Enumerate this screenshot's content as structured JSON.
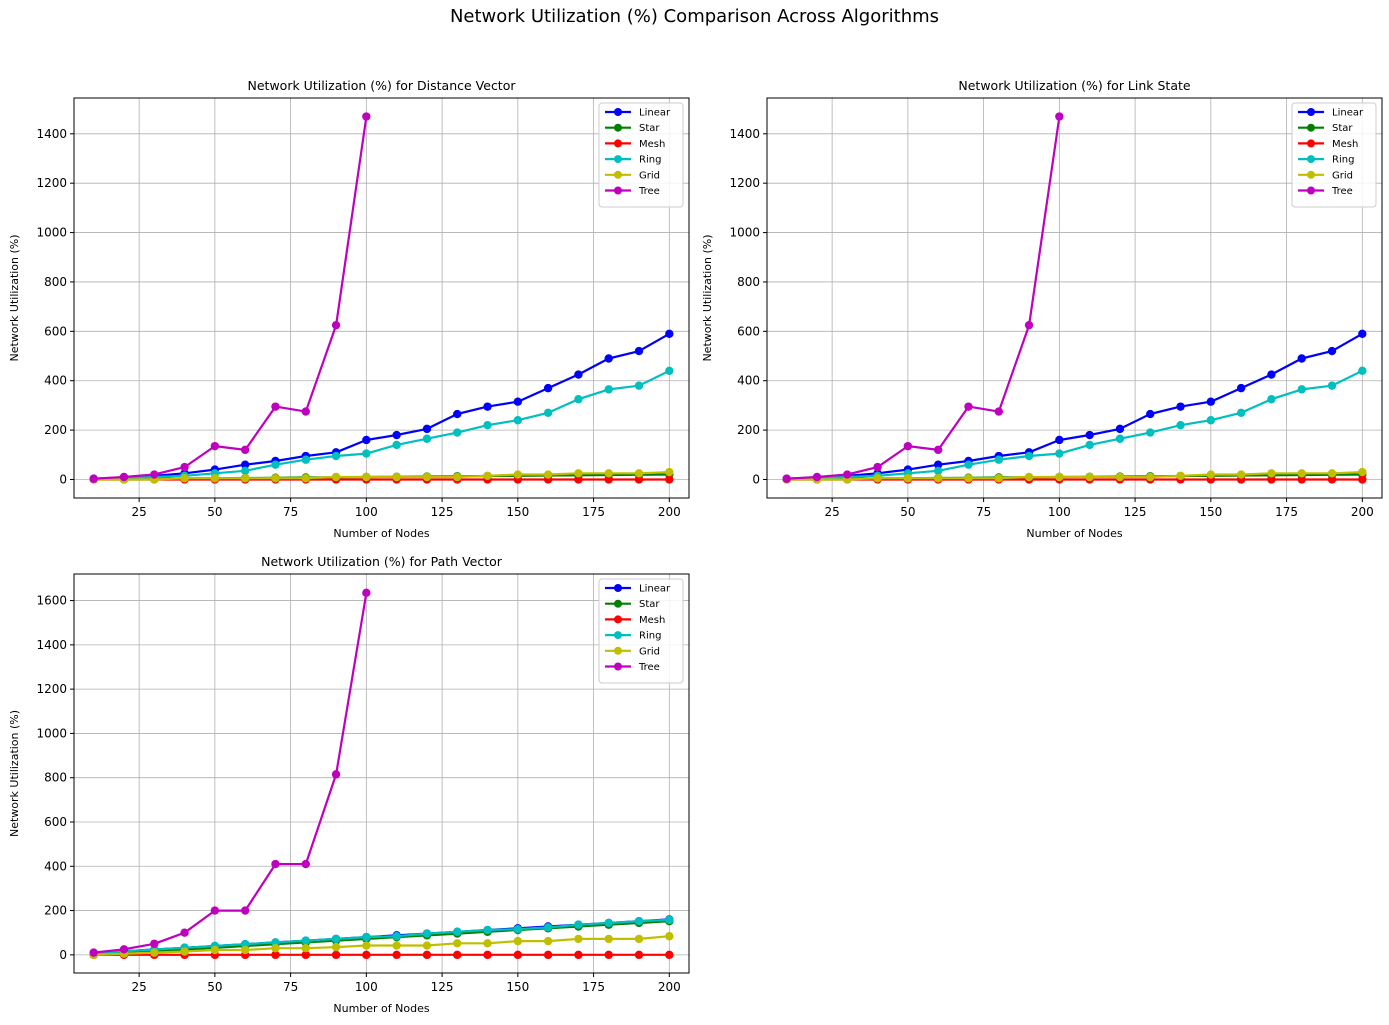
{
  "suptitle": "Network Utilization (%) Comparison Across Algorithms",
  "colors": {
    "Linear": "#0000ff",
    "Star": "#008000",
    "Mesh": "#ff0000",
    "Ring": "#00bfbf",
    "Grid": "#bfbf00",
    "Tree": "#bf00bf"
  },
  "chart_data": [
    {
      "type": "line",
      "title": "Network Utilization (%) for Distance Vector",
      "xlabel": "Number of Nodes",
      "ylabel": "Network Utilization (%)",
      "xlim": [
        3.5,
        206.5
      ],
      "ylim": [
        -75,
        1545
      ],
      "xticks": [
        25,
        50,
        75,
        100,
        125,
        150,
        175,
        200
      ],
      "yticks": [
        0,
        200,
        400,
        600,
        800,
        1000,
        1200,
        1400
      ],
      "grid": true,
      "legend": "top-right",
      "series": [
        {
          "name": "Linear",
          "x": [
            10,
            20,
            30,
            40,
            50,
            60,
            70,
            80,
            90,
            100,
            110,
            120,
            130,
            140,
            150,
            160,
            170,
            180,
            190,
            200
          ],
          "values": [
            3,
            8,
            15,
            25,
            40,
            60,
            75,
            95,
            110,
            160,
            180,
            205,
            265,
            295,
            315,
            370,
            425,
            490,
            520,
            590
          ]
        },
        {
          "name": "Star",
          "x": [
            10,
            20,
            30,
            40,
            50,
            60,
            70,
            80,
            90,
            100,
            110,
            120,
            130,
            140,
            150,
            160,
            170,
            180,
            190,
            200
          ],
          "values": [
            1,
            2,
            3,
            4,
            5,
            6,
            7,
            8,
            9,
            10,
            11,
            12,
            13,
            14,
            15,
            16,
            17,
            18,
            19,
            20
          ]
        },
        {
          "name": "Mesh",
          "x": [
            10,
            20,
            30,
            40,
            50,
            60,
            70,
            80,
            90,
            100,
            110,
            120,
            130,
            140,
            150,
            160,
            170,
            180,
            190,
            200
          ],
          "values": [
            0,
            0,
            0,
            0,
            0,
            0,
            0,
            0,
            0,
            0,
            0,
            0,
            0,
            0,
            0,
            0,
            0,
            0,
            0,
            0
          ]
        },
        {
          "name": "Ring",
          "x": [
            10,
            20,
            30,
            40,
            50,
            60,
            70,
            80,
            90,
            100,
            110,
            120,
            130,
            140,
            150,
            160,
            170,
            180,
            190,
            200
          ],
          "values": [
            2,
            5,
            10,
            15,
            25,
            35,
            60,
            80,
            95,
            105,
            140,
            165,
            190,
            220,
            240,
            270,
            325,
            365,
            380,
            440
          ]
        },
        {
          "name": "Grid",
          "x": [
            10,
            20,
            30,
            40,
            50,
            60,
            70,
            80,
            90,
            100,
            110,
            120,
            130,
            140,
            150,
            160,
            170,
            180,
            190,
            200
          ],
          "values": [
            0,
            0,
            0,
            5,
            5,
            5,
            5,
            5,
            10,
            10,
            10,
            10,
            10,
            15,
            20,
            20,
            25,
            25,
            25,
            30
          ]
        },
        {
          "name": "Tree",
          "x": [
            10,
            20,
            30,
            40,
            50,
            60,
            70,
            80,
            90,
            100
          ],
          "values": [
            3,
            10,
            20,
            50,
            135,
            120,
            295,
            275,
            625,
            1470
          ]
        }
      ]
    },
    {
      "type": "line",
      "title": "Network Utilization (%) for Link State",
      "xlabel": "Number of Nodes",
      "ylabel": "Network Utilization (%)",
      "xlim": [
        3.5,
        206.5
      ],
      "ylim": [
        -75,
        1545
      ],
      "xticks": [
        25,
        50,
        75,
        100,
        125,
        150,
        175,
        200
      ],
      "yticks": [
        0,
        200,
        400,
        600,
        800,
        1000,
        1200,
        1400
      ],
      "grid": true,
      "legend": "top-right",
      "series": [
        {
          "name": "Linear",
          "x": [
            10,
            20,
            30,
            40,
            50,
            60,
            70,
            80,
            90,
            100,
            110,
            120,
            130,
            140,
            150,
            160,
            170,
            180,
            190,
            200
          ],
          "values": [
            3,
            8,
            15,
            25,
            40,
            60,
            75,
            95,
            110,
            160,
            180,
            205,
            265,
            295,
            315,
            370,
            425,
            490,
            520,
            590
          ]
        },
        {
          "name": "Star",
          "x": [
            10,
            20,
            30,
            40,
            50,
            60,
            70,
            80,
            90,
            100,
            110,
            120,
            130,
            140,
            150,
            160,
            170,
            180,
            190,
            200
          ],
          "values": [
            1,
            2,
            3,
            4,
            5,
            6,
            7,
            8,
            9,
            10,
            11,
            12,
            13,
            14,
            15,
            16,
            17,
            18,
            19,
            20
          ]
        },
        {
          "name": "Mesh",
          "x": [
            10,
            20,
            30,
            40,
            50,
            60,
            70,
            80,
            90,
            100,
            110,
            120,
            130,
            140,
            150,
            160,
            170,
            180,
            190,
            200
          ],
          "values": [
            0,
            0,
            0,
            0,
            0,
            0,
            0,
            0,
            0,
            0,
            0,
            0,
            0,
            0,
            0,
            0,
            0,
            0,
            0,
            0
          ]
        },
        {
          "name": "Ring",
          "x": [
            10,
            20,
            30,
            40,
            50,
            60,
            70,
            80,
            90,
            100,
            110,
            120,
            130,
            140,
            150,
            160,
            170,
            180,
            190,
            200
          ],
          "values": [
            2,
            5,
            10,
            15,
            25,
            35,
            60,
            80,
            95,
            105,
            140,
            165,
            190,
            220,
            240,
            270,
            325,
            365,
            380,
            440
          ]
        },
        {
          "name": "Grid",
          "x": [
            10,
            20,
            30,
            40,
            50,
            60,
            70,
            80,
            90,
            100,
            110,
            120,
            130,
            140,
            150,
            160,
            170,
            180,
            190,
            200
          ],
          "values": [
            0,
            0,
            0,
            5,
            5,
            5,
            5,
            5,
            10,
            10,
            10,
            10,
            10,
            15,
            20,
            20,
            25,
            25,
            25,
            30
          ]
        },
        {
          "name": "Tree",
          "x": [
            10,
            20,
            30,
            40,
            50,
            60,
            70,
            80,
            90,
            100
          ],
          "values": [
            3,
            10,
            20,
            50,
            135,
            120,
            295,
            275,
            625,
            1470
          ]
        }
      ]
    },
    {
      "type": "line",
      "title": "Network Utilization (%) for Path Vector",
      "xlabel": "Number of Nodes",
      "ylabel": "Network Utilization (%)",
      "xlim": [
        3.5,
        206.5
      ],
      "ylim": [
        -82,
        1720
      ],
      "xticks": [
        25,
        50,
        75,
        100,
        125,
        150,
        175,
        200
      ],
      "yticks": [
        0,
        200,
        400,
        600,
        800,
        1000,
        1200,
        1400,
        1600
      ],
      "grid": true,
      "legend": "top-right",
      "series": [
        {
          "name": "Linear",
          "x": [
            10,
            20,
            30,
            40,
            50,
            60,
            70,
            80,
            90,
            100,
            110,
            120,
            130,
            140,
            150,
            160,
            170,
            180,
            190,
            200
          ],
          "values": [
            8,
            16,
            24,
            32,
            40,
            48,
            56,
            64,
            72,
            80,
            88,
            96,
            104,
            112,
            120,
            128,
            136,
            144,
            152,
            160
          ]
        },
        {
          "name": "Star",
          "x": [
            10,
            20,
            30,
            40,
            50,
            60,
            70,
            80,
            90,
            100,
            110,
            120,
            130,
            140,
            150,
            160,
            170,
            180,
            190,
            200
          ],
          "values": [
            0,
            8,
            16,
            24,
            32,
            40,
            48,
            56,
            64,
            72,
            80,
            88,
            96,
            104,
            112,
            120,
            128,
            136,
            144,
            152
          ]
        },
        {
          "name": "Mesh",
          "x": [
            10,
            20,
            30,
            40,
            50,
            60,
            70,
            80,
            90,
            100,
            110,
            120,
            130,
            140,
            150,
            160,
            170,
            180,
            190,
            200
          ],
          "values": [
            0,
            0,
            0,
            0,
            0,
            0,
            0,
            0,
            0,
            0,
            0,
            0,
            0,
            0,
            0,
            0,
            0,
            0,
            0,
            0
          ]
        },
        {
          "name": "Ring",
          "x": [
            10,
            20,
            30,
            40,
            50,
            60,
            70,
            80,
            90,
            100,
            110,
            120,
            130,
            140,
            150,
            160,
            170,
            180,
            190,
            200
          ],
          "values": [
            8,
            16,
            24,
            32,
            40,
            48,
            56,
            64,
            72,
            80,
            84,
            96,
            104,
            112,
            116,
            124,
            136,
            144,
            152,
            158
          ]
        },
        {
          "name": "Grid",
          "x": [
            10,
            20,
            30,
            40,
            50,
            60,
            70,
            80,
            90,
            100,
            110,
            120,
            130,
            140,
            150,
            160,
            170,
            180,
            190,
            200
          ],
          "values": [
            0,
            5,
            10,
            15,
            22,
            22,
            30,
            30,
            35,
            42,
            42,
            42,
            52,
            52,
            62,
            62,
            72,
            72,
            72,
            84
          ]
        },
        {
          "name": "Tree",
          "x": [
            10,
            20,
            30,
            40,
            50,
            60,
            70,
            80,
            90,
            100
          ],
          "values": [
            10,
            25,
            50,
            100,
            200,
            200,
            410,
            410,
            815,
            1635
          ]
        }
      ]
    }
  ]
}
